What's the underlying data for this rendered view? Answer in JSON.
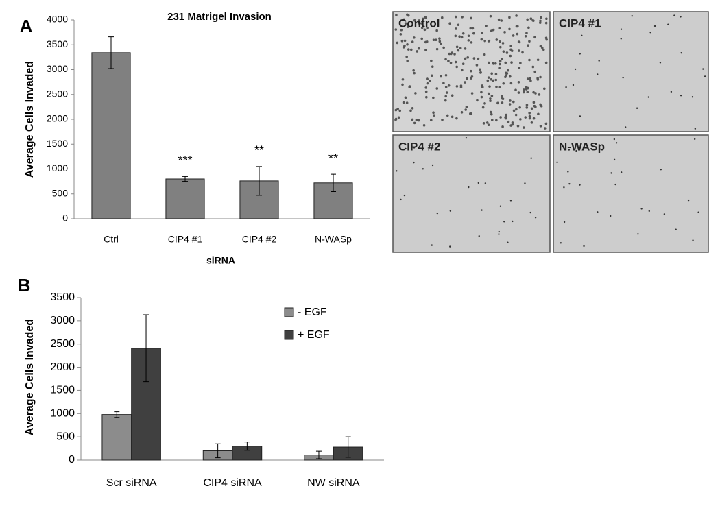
{
  "panel_labels": [
    "A",
    "B"
  ],
  "micrographs": [
    "Control",
    "CIP4 #1",
    "CIP4 #2",
    "N-WASp"
  ],
  "chart_data": [
    {
      "type": "bar",
      "title": "231 Matrigel Invasion",
      "y_label": "Average Cells Invaded",
      "x_label": "siRNA",
      "categories": [
        "Ctrl",
        "CIP4 #1",
        "CIP4 #2",
        "N-WASp"
      ],
      "values": [
        3340,
        800,
        760,
        720
      ],
      "errors": [
        320,
        50,
        290,
        175
      ],
      "significance": [
        null,
        "***",
        "**",
        "**"
      ],
      "color": "#808080",
      "ylim": [
        0,
        4000
      ],
      "yticks": [
        0,
        500,
        1000,
        1500,
        2000,
        2500,
        3000,
        3500,
        4000
      ],
      "grid": false
    },
    {
      "type": "grouped_bar",
      "y_label": "Average Cells Invaded",
      "categories": [
        "Scr siRNA",
        "CIP4 siRNA",
        "NW siRNA"
      ],
      "series": [
        {
          "name": "- EGF",
          "color": "#8c8c8c",
          "values": [
            980,
            200,
            110
          ],
          "errors": [
            60,
            150,
            80
          ]
        },
        {
          "name": "+ EGF",
          "color": "#404040",
          "values": [
            2410,
            300,
            280
          ],
          "errors": [
            720,
            90,
            220
          ]
        }
      ],
      "ylim": [
        0,
        3500
      ],
      "yticks": [
        0,
        500,
        1000,
        1500,
        2000,
        2500,
        3000,
        3500
      ],
      "grid": false,
      "legend": "top-right"
    }
  ]
}
